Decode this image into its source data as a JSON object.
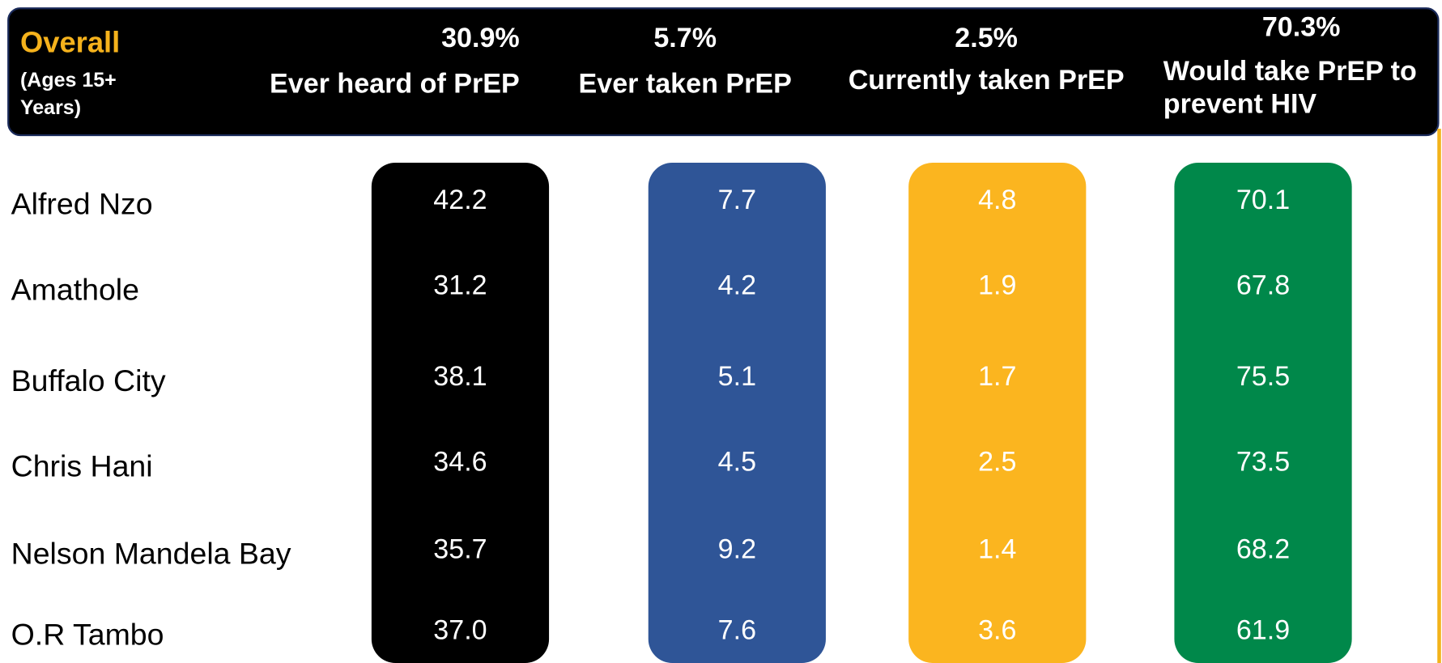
{
  "header": {
    "title": "Overall",
    "subtitle": "(Ages 15+ Years)",
    "columns": [
      {
        "value": "30.9%",
        "label": "Ever heard of PrEP"
      },
      {
        "value": "5.7%",
        "label": "Ever taken PrEP"
      },
      {
        "value": "2.5%",
        "label": "Currently taken PrEP"
      },
      {
        "value": "70.3%",
        "label": "Would take PrEP to prevent HIV"
      }
    ]
  },
  "table": {
    "rows": [
      {
        "label": "Alfred Nzo",
        "cells": [
          "42.2",
          "7.7",
          "4.8",
          "70.1"
        ]
      },
      {
        "label": "Amathole",
        "cells": [
          "31.2",
          "4.2",
          "1.9",
          "67.8"
        ]
      },
      {
        "label": "Buffalo City",
        "cells": [
          "38.1",
          "5.1",
          "1.7",
          "75.5"
        ]
      },
      {
        "label": "Chris Hani",
        "cells": [
          "34.6",
          "4.5",
          "2.5",
          "73.5"
        ]
      },
      {
        "label": "Nelson Mandela Bay",
        "cells": [
          "35.7",
          "9.2",
          "1.4",
          "68.2"
        ]
      },
      {
        "label": "O.R Tambo",
        "cells": [
          "37.0",
          "7.6",
          "3.6",
          "61.9"
        ]
      }
    ]
  }
}
